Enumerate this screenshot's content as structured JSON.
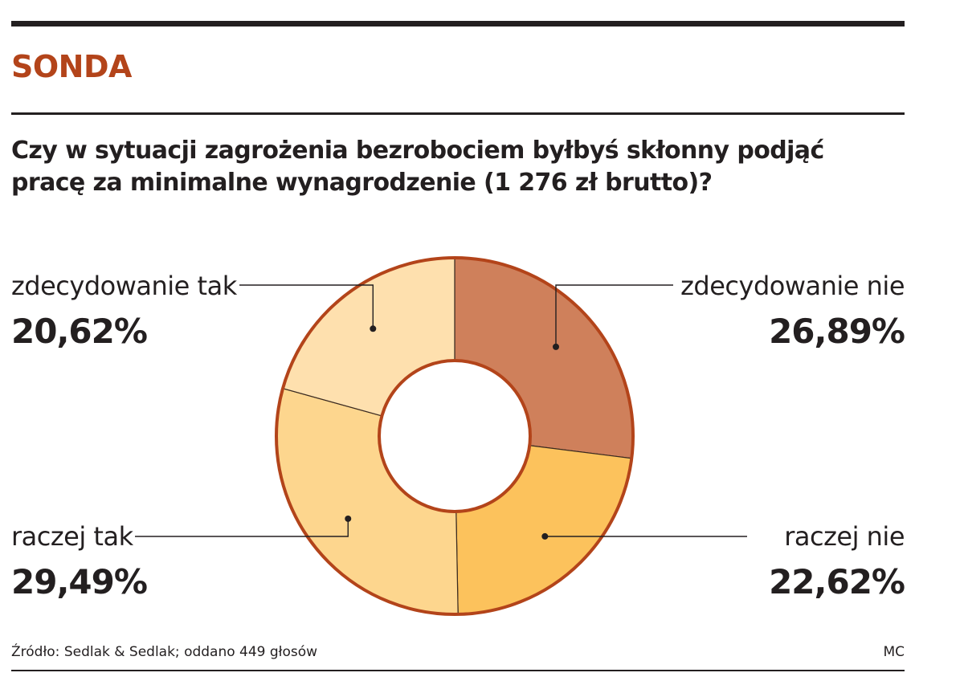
{
  "header": {
    "section_label": "SONDA",
    "question": "Czy w sytuacji zagrożenia bezrobociem byłbyś skłonny podjąć pracę za minimalne wynagrodzenie (1 276 zł brutto)?"
  },
  "chart_data": {
    "type": "pie",
    "variant": "donut",
    "title": "Czy w sytuacji zagrożenia bezrobociem byłbyś skłonny podjąć pracę za minimalne wynagrodzenie (1 276 zł brutto)?",
    "unit": "%",
    "slices": [
      {
        "label": "zdecydowanie nie",
        "value": 26.89,
        "display": "26,89%",
        "color": "#cf805b"
      },
      {
        "label": "raczej nie",
        "value": 22.62,
        "display": "22,62%",
        "color": "#fcc25c"
      },
      {
        "label": "raczej tak",
        "value": 29.49,
        "display": "29,49%",
        "color": "#fdd68e"
      },
      {
        "label": "zdecydowanie tak",
        "value": 20.62,
        "display": "20,62%",
        "color": "#fee0ae"
      }
    ],
    "outline_color": "#b3441a",
    "start": "12 o'clock, clockwise"
  },
  "labels": {
    "zdecydowanie_nie": {
      "name": "zdecydowanie nie",
      "value": "26,89%"
    },
    "raczej_nie": {
      "name": "raczej nie",
      "value": "22,62%"
    },
    "raczej_tak": {
      "name": "raczej tak",
      "value": "29,49%"
    },
    "zdecydowanie_tak": {
      "name": "zdecydowanie tak",
      "value": "20,62%"
    }
  },
  "footer": {
    "source": "Źródło: Sedlak & Sedlak; oddano 449 głosów",
    "credit": "MC"
  },
  "colors": {
    "accent": "#b3441a",
    "text": "#231f20"
  }
}
